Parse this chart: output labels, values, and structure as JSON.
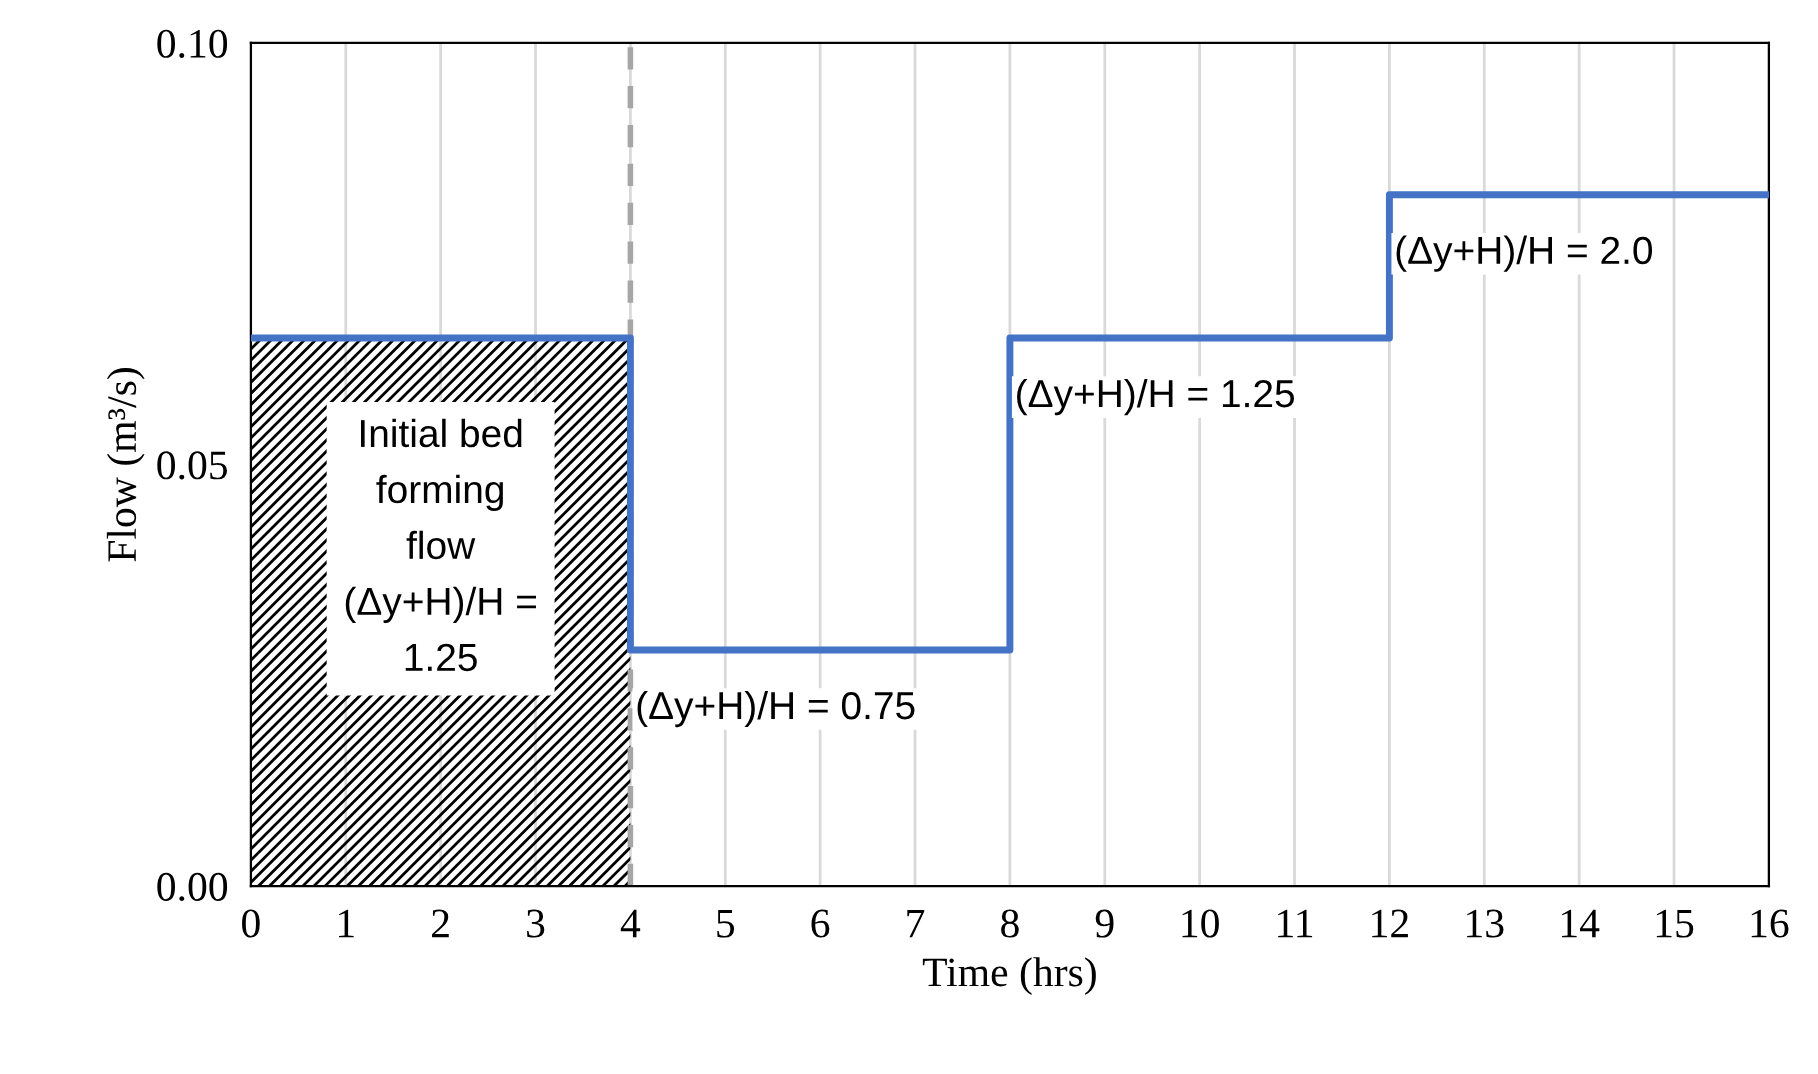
{
  "chart_data": {
    "type": "step",
    "xlabel": "Time (hrs)",
    "ylabel": "Flow (m³/s)",
    "xlim": [
      0,
      16
    ],
    "xticks": [
      0,
      1,
      2,
      3,
      4,
      5,
      6,
      7,
      8,
      9,
      10,
      11,
      12,
      13,
      14,
      15,
      16
    ],
    "ylim": [
      0,
      0.1
    ],
    "yticks": [
      {
        "value": 0,
        "label": "0.00"
      },
      {
        "value": 0.05,
        "label": "0.05"
      },
      {
        "value": 0.1,
        "label": "0.10"
      }
    ],
    "grid": "x",
    "legend": false,
    "series": [
      {
        "type": "area",
        "x": [
          0,
          4
        ],
        "values": [
          0.065,
          0.065
        ],
        "color": "#000000"
      },
      {
        "x": [
          0,
          4,
          8,
          12,
          16
        ],
        "values": [
          0.065,
          0.028,
          0.065,
          0.082,
          0.082
        ],
        "color": "#4472c4"
      }
    ],
    "ref_lines": [
      {
        "axis": "x",
        "value": 4,
        "color": "#a6a6a6",
        "line_style": "dashed"
      }
    ],
    "annotations": [
      "Initial bed\nforming\nflow\n(Δy+H)/H =\n1.25",
      {
        "text": "(Δy+H)/H = 0.75",
        "x": 4.05,
        "y": 0.021
      },
      {
        "text": "(Δy+H)/H = 1.25",
        "x": 8.05,
        "y": 0.058
      },
      {
        "text": "(Δy+H)/H = 2.0",
        "x": 12.05,
        "y": 0.075
      }
    ]
  }
}
